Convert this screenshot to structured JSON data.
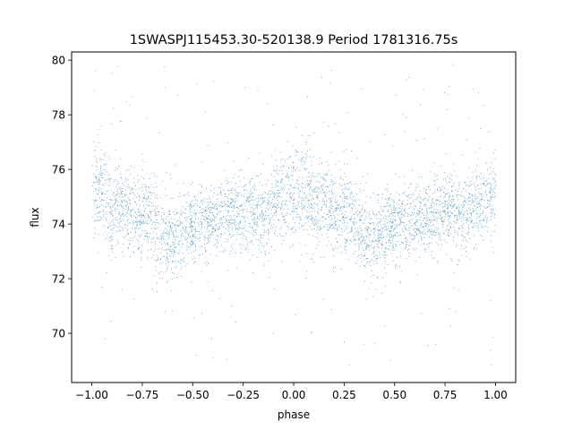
{
  "chart_data": {
    "type": "scatter",
    "title": "1SWASPJ115453.30-520138.9 Period 1781316.75s",
    "xlabel": "phase",
    "ylabel": "flux",
    "xlim": [
      -1.1,
      1.1
    ],
    "ylim": [
      68.2,
      80.3
    ],
    "xticks": [
      -1.0,
      -0.75,
      -0.5,
      -0.25,
      0.0,
      0.25,
      0.5,
      0.75,
      1.0
    ],
    "xtick_labels": [
      "−1.00",
      "−0.75",
      "−0.50",
      "−0.25",
      "0.00",
      "0.25",
      "0.50",
      "0.75",
      "1.00"
    ],
    "yticks": [
      70,
      72,
      74,
      76,
      78,
      80
    ],
    "ytick_labels": [
      "70",
      "72",
      "74",
      "76",
      "78",
      "80"
    ],
    "grid": false,
    "legend": "none",
    "point_color": "#1f77b4",
    "series": [
      {
        "phase": [
          -1.0,
          -0.95,
          -0.9,
          -0.85,
          -0.8,
          -0.75,
          -0.7,
          -0.65,
          -0.6,
          -0.55,
          -0.5,
          -0.45,
          -0.4,
          -0.35,
          -0.3,
          -0.25,
          -0.2,
          -0.15,
          -0.1,
          -0.05,
          0.0,
          0.05,
          0.1,
          0.15,
          0.2,
          0.25,
          0.3,
          0.35,
          0.4,
          0.45,
          0.5,
          0.55,
          0.6,
          0.65,
          0.7,
          0.75,
          0.8,
          0.85,
          0.9,
          0.95,
          1.0
        ],
        "mean_flux": [
          75.0,
          75.3,
          74.7,
          74.6,
          74.4,
          74.4,
          74.1,
          73.6,
          73.4,
          73.9,
          73.9,
          74.1,
          74.0,
          74.2,
          74.4,
          74.4,
          74.6,
          74.3,
          74.8,
          75.0,
          75.0,
          75.3,
          74.7,
          74.6,
          74.4,
          74.4,
          74.1,
          73.6,
          73.4,
          73.9,
          73.9,
          74.1,
          74.0,
          74.2,
          74.4,
          74.4,
          74.6,
          74.3,
          74.8,
          75.0,
          75.0
        ],
        "spread": [
          1.1,
          1.3,
          1.1,
          1.1,
          1.1,
          1.0,
          1.0,
          1.1,
          1.0,
          0.9,
          0.9,
          0.9,
          0.9,
          0.9,
          1.0,
          1.0,
          1.0,
          1.0,
          1.0,
          1.1,
          1.1,
          1.3,
          1.1,
          1.1,
          1.1,
          1.0,
          1.0,
          1.1,
          1.0,
          0.9,
          0.9,
          0.9,
          0.9,
          0.9,
          1.0,
          1.0,
          1.0,
          1.0,
          1.0,
          1.1,
          1.1
        ],
        "min_flux": 68.7,
        "max_flux": 80.0
      }
    ]
  }
}
